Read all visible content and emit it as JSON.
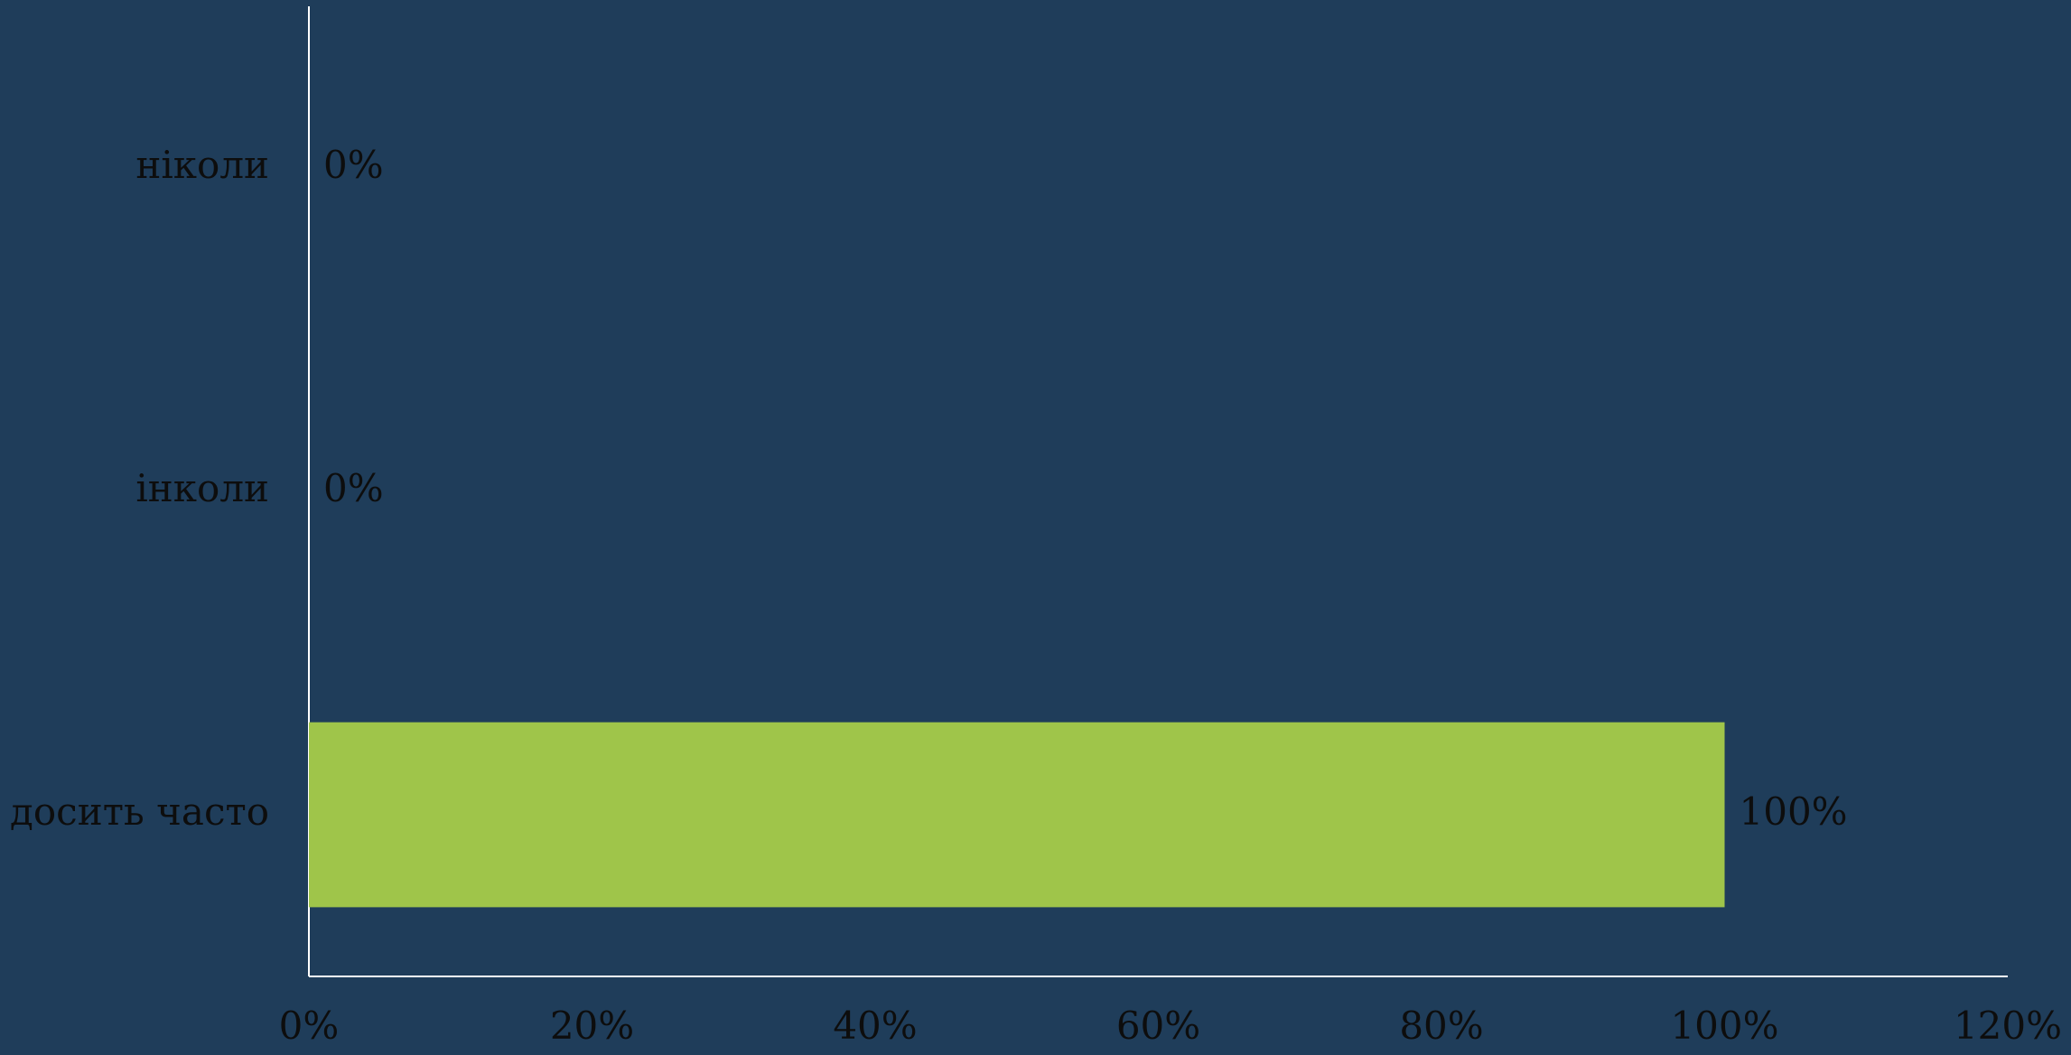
{
  "chart_data": {
    "type": "hbar",
    "categories": [
      "ніколи",
      "інколи",
      "досить часто"
    ],
    "values": [
      0,
      0,
      100
    ],
    "value_labels": [
      "0%",
      "0%",
      "100%"
    ],
    "color": "#9fc54a",
    "xlim": [
      0,
      120
    ],
    "xticks": [
      {
        "value": 0,
        "label": "0%"
      },
      {
        "value": 20,
        "label": "20%"
      },
      {
        "value": 40,
        "label": "40%"
      },
      {
        "value": 60,
        "label": "60%"
      },
      {
        "value": 80,
        "label": "80%"
      },
      {
        "value": 100,
        "label": "100%"
      },
      {
        "value": 120,
        "label": "120%"
      }
    ]
  }
}
